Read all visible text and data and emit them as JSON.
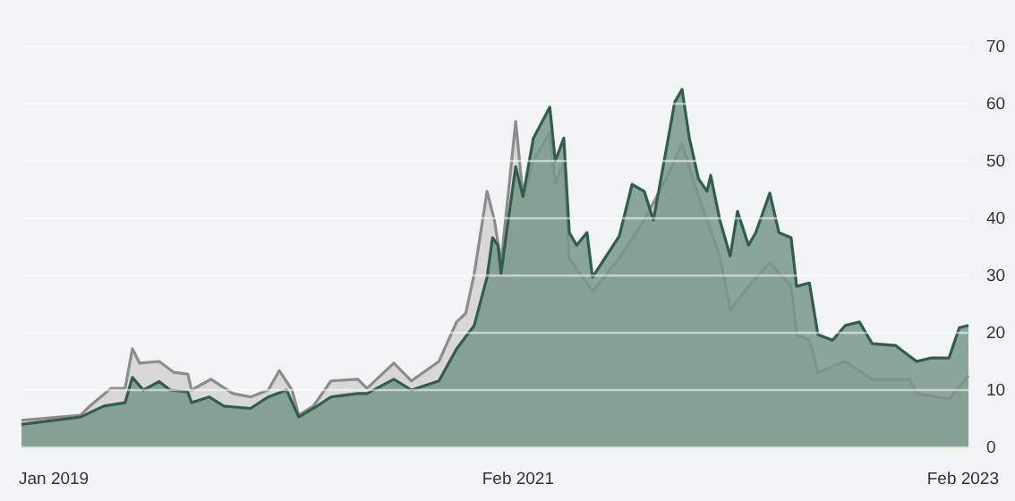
{
  "chart_data": {
    "type": "area",
    "grid": "y",
    "ylim": [
      0,
      70
    ],
    "yticks": [
      0,
      10,
      20,
      30,
      40,
      50,
      60,
      70
    ],
    "xlim": [
      "2018-11-09",
      "2023-02-10"
    ],
    "xticks": [
      {
        "value": "2019-01-01",
        "label": "Jan 2019"
      },
      {
        "value": "2021-02-01",
        "label": "Feb 2021"
      },
      {
        "value": "2023-02-01",
        "label": "Feb 2023"
      }
    ],
    "series": [
      {
        "color": "#8c8c8c",
        "x": [
          "2018-11-09",
          "2019-02-14",
          "2019-03-01",
          "2019-04-05",
          "2019-04-28",
          "2019-05-10",
          "2019-05-22",
          "2019-06-23",
          "2019-07-17",
          "2019-08-09",
          "2019-08-15",
          "2019-09-16",
          "2019-10-22",
          "2019-11-20",
          "2019-12-19",
          "2020-01-06",
          "2020-01-27",
          "2020-02-07",
          "2020-03-02",
          "2020-03-31",
          "2020-05-14",
          "2020-05-29",
          "2020-07-12",
          "2020-08-10",
          "2020-09-24",
          "2020-10-23",
          "2020-11-07",
          "2020-11-21",
          "2020-12-12",
          "2020-12-24",
          "2021-01-04",
          "2021-01-28",
          "2021-02-09",
          "2021-02-26",
          "2021-03-25",
          "2021-04-03",
          "2021-04-17",
          "2021-04-26",
          "2021-06-03",
          "2021-07-17",
          "2021-08-27",
          "2021-10-02",
          "2021-10-28",
          "2021-11-24",
          "2021-12-29",
          "2022-01-15",
          "2022-02-14",
          "2022-03-21",
          "2022-04-25",
          "2022-05-04",
          "2022-05-25",
          "2022-06-08",
          "2022-07-23",
          "2022-09-05",
          "2022-11-05",
          "2022-11-17",
          "2023-01-09",
          "2023-02-10"
        ],
        "values": [
          4.7,
          5.6,
          7.2,
          10.3,
          10.3,
          17.2,
          14.7,
          15,
          13.1,
          12.8,
          10,
          11.9,
          9.4,
          8.8,
          10,
          13.4,
          10,
          5.6,
          7.2,
          11.6,
          11.9,
          10.3,
          14.7,
          11.6,
          15,
          21.9,
          23.4,
          30.3,
          44.7,
          39.7,
          32.2,
          56.9,
          43.8,
          50,
          55,
          46,
          50,
          33,
          27.2,
          33,
          39.7,
          46.9,
          53,
          43.8,
          33.4,
          24,
          28.1,
          32.2,
          28.1,
          19.7,
          18.7,
          13.1,
          15,
          11.9,
          11.9,
          9.4,
          8.4,
          12.5
        ]
      },
      {
        "color": "#2f5f4c",
        "x": [
          "2018-11-09",
          "2019-02-14",
          "2019-03-24",
          "2019-04-28",
          "2019-05-10",
          "2019-05-28",
          "2019-06-23",
          "2019-07-11",
          "2019-08-09",
          "2019-08-15",
          "2019-09-13",
          "2019-10-07",
          "2019-11-20",
          "2019-12-19",
          "2020-01-18",
          "2020-02-07",
          "2020-03-02",
          "2020-03-31",
          "2020-05-14",
          "2020-05-29",
          "2020-07-12",
          "2020-08-10",
          "2020-09-24",
          "2020-10-23",
          "2020-11-21",
          "2020-12-12",
          "2020-12-21",
          "2020-12-30",
          "2021-01-04",
          "2021-01-13",
          "2021-01-28",
          "2021-02-09",
          "2021-02-26",
          "2021-03-25",
          "2021-04-03",
          "2021-04-17",
          "2021-04-26",
          "2021-05-08",
          "2021-05-25",
          "2021-06-03",
          "2021-07-17",
          "2021-08-07",
          "2021-08-27",
          "2021-09-11",
          "2021-10-02",
          "2021-10-16",
          "2021-10-28",
          "2021-11-09",
          "2021-11-24",
          "2021-12-08",
          "2021-12-14",
          "2021-12-29",
          "2022-01-15",
          "2022-01-27",
          "2022-02-14",
          "2022-02-26",
          "2022-03-21",
          "2022-04-05",
          "2022-04-25",
          "2022-05-04",
          "2022-05-25",
          "2022-06-08",
          "2022-07-02",
          "2022-07-23",
          "2022-08-15",
          "2022-09-05",
          "2022-10-13",
          "2022-11-17",
          "2022-12-11",
          "2023-01-09",
          "2023-01-26",
          "2023-02-10"
        ],
        "values": [
          4,
          5.3,
          7.2,
          7.8,
          12.2,
          10,
          11.5,
          10,
          9.7,
          7.8,
          8.8,
          7.2,
          6.8,
          8.8,
          10,
          5.3,
          6.8,
          8.8,
          9.4,
          9.4,
          11.9,
          10,
          11.6,
          17.2,
          21.3,
          29.7,
          36.6,
          35.3,
          30.3,
          37.5,
          49,
          43.8,
          54,
          59.4,
          50,
          54,
          37.5,
          35.3,
          37.5,
          29.7,
          36.9,
          45.9,
          44.7,
          39.7,
          52,
          60.3,
          62.5,
          54,
          46.9,
          44.7,
          47.5,
          39.7,
          33.4,
          41.2,
          35.3,
          37.5,
          44.4,
          37.5,
          36.6,
          28.1,
          28.7,
          19.7,
          18.7,
          21.3,
          21.9,
          18.1,
          17.8,
          15,
          15.6,
          15.6,
          20.9,
          21.3
        ]
      }
    ]
  }
}
